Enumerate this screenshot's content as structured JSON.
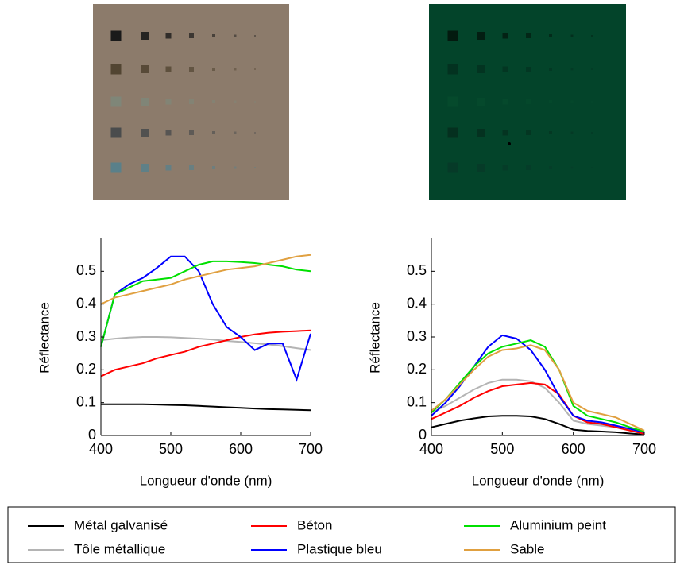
{
  "chart_data": [
    {
      "type": "line",
      "ylabel": "Réflectance",
      "xlabel": "Longueur d'onde (nm)",
      "x": [
        400,
        420,
        440,
        460,
        480,
        500,
        520,
        540,
        560,
        580,
        600,
        620,
        640,
        660,
        680,
        700
      ],
      "xlim": [
        400,
        700
      ],
      "xticks": [
        400,
        500,
        600,
        700
      ],
      "ylim": [
        0,
        0.6
      ],
      "yticks": [
        0,
        0.1,
        0.2,
        0.3,
        0.4,
        0.5
      ],
      "series": [
        {
          "name": "Métal galvanisé",
          "color": "#000000",
          "values": [
            0.095,
            0.095,
            0.095,
            0.095,
            0.094,
            0.093,
            0.092,
            0.09,
            0.088,
            0.086,
            0.084,
            0.082,
            0.08,
            0.079,
            0.078,
            0.077
          ]
        },
        {
          "name": "Tôle métallique",
          "color": "#b4b4b4",
          "values": [
            0.29,
            0.295,
            0.298,
            0.3,
            0.3,
            0.299,
            0.297,
            0.295,
            0.292,
            0.288,
            0.285,
            0.281,
            0.277,
            0.272,
            0.266,
            0.26
          ]
        },
        {
          "name": "Béton",
          "color": "#ff0000",
          "values": [
            0.18,
            0.2,
            0.21,
            0.22,
            0.235,
            0.245,
            0.255,
            0.27,
            0.28,
            0.29,
            0.3,
            0.308,
            0.313,
            0.316,
            0.318,
            0.32
          ]
        },
        {
          "name": "Plastique bleu",
          "color": "#0000ff",
          "values": [
            0.27,
            0.43,
            0.46,
            0.48,
            0.51,
            0.545,
            0.545,
            0.5,
            0.4,
            0.33,
            0.3,
            0.26,
            0.28,
            0.28,
            0.17,
            0.31
          ]
        },
        {
          "name": "Aluminium peint",
          "color": "#00e000",
          "values": [
            0.27,
            0.43,
            0.45,
            0.47,
            0.475,
            0.48,
            0.5,
            0.52,
            0.53,
            0.53,
            0.528,
            0.525,
            0.52,
            0.515,
            0.505,
            0.5
          ]
        },
        {
          "name": "Sable",
          "color": "#e0a040",
          "values": [
            0.4,
            0.42,
            0.43,
            0.44,
            0.45,
            0.46,
            0.475,
            0.485,
            0.495,
            0.505,
            0.51,
            0.515,
            0.525,
            0.535,
            0.545,
            0.55
          ]
        }
      ]
    },
    {
      "type": "line",
      "ylabel": "Réflectance",
      "xlabel": "Longueur d'onde (nm)",
      "x": [
        400,
        420,
        440,
        460,
        480,
        500,
        520,
        540,
        560,
        580,
        600,
        620,
        640,
        660,
        680,
        700
      ],
      "xlim": [
        400,
        700
      ],
      "xticks": [
        400,
        500,
        600,
        700
      ],
      "ylim": [
        0,
        0.6
      ],
      "yticks": [
        0,
        0.1,
        0.2,
        0.3,
        0.4,
        0.5
      ],
      "series": [
        {
          "color": "#000000",
          "values": [
            0.025,
            0.035,
            0.045,
            0.052,
            0.058,
            0.06,
            0.06,
            0.058,
            0.05,
            0.035,
            0.018,
            0.014,
            0.012,
            0.01,
            0.006,
            0.003
          ]
        },
        {
          "color": "#b4b4b4",
          "values": [
            0.07,
            0.09,
            0.115,
            0.14,
            0.16,
            0.17,
            0.17,
            0.165,
            0.145,
            0.1,
            0.045,
            0.035,
            0.03,
            0.025,
            0.015,
            0.005
          ]
        },
        {
          "color": "#ff0000",
          "values": [
            0.05,
            0.07,
            0.09,
            0.115,
            0.135,
            0.15,
            0.155,
            0.16,
            0.155,
            0.125,
            0.06,
            0.04,
            0.035,
            0.025,
            0.015,
            0.005
          ]
        },
        {
          "color": "#0000ff",
          "values": [
            0.06,
            0.1,
            0.15,
            0.21,
            0.27,
            0.305,
            0.295,
            0.26,
            0.2,
            0.12,
            0.06,
            0.045,
            0.04,
            0.03,
            0.02,
            0.01
          ]
        },
        {
          "color": "#00e000",
          "values": [
            0.07,
            0.11,
            0.16,
            0.21,
            0.25,
            0.27,
            0.28,
            0.29,
            0.27,
            0.2,
            0.09,
            0.06,
            0.05,
            0.04,
            0.025,
            0.012
          ]
        },
        {
          "color": "#e0a040",
          "values": [
            0.075,
            0.11,
            0.155,
            0.2,
            0.24,
            0.26,
            0.265,
            0.275,
            0.26,
            0.2,
            0.1,
            0.075,
            0.065,
            0.055,
            0.035,
            0.015
          ]
        }
      ]
    }
  ]
}
